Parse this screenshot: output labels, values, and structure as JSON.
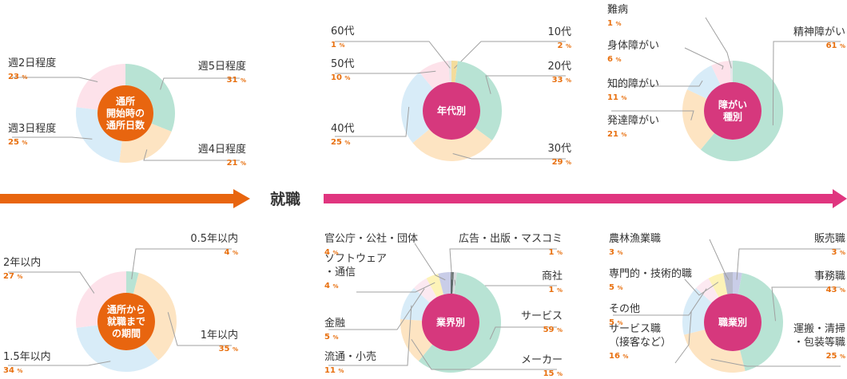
{
  "divider_label": "就職",
  "colors": {
    "orange_arrow": "#e8650f",
    "pink_arrow": "#e0357f",
    "percent_text": "#e8700f",
    "center_orange": "#e8650f",
    "center_pink": "#d6387d"
  },
  "chart_data": [
    {
      "id": "days",
      "type": "pie",
      "center_label": [
        "通所",
        "開始時の",
        "通所日数"
      ],
      "categories": [
        "週5日程度",
        "週4日程度",
        "週3日程度",
        "週2日程度"
      ],
      "values": [
        31,
        21,
        25,
        23
      ],
      "unit": "%"
    },
    {
      "id": "age",
      "type": "pie",
      "center_label": [
        "年代別"
      ],
      "categories": [
        "10代",
        "20代",
        "30代",
        "40代",
        "50代",
        "60代"
      ],
      "values": [
        2,
        33,
        29,
        25,
        10,
        1
      ],
      "unit": "%"
    },
    {
      "id": "disability",
      "type": "pie",
      "center_label": [
        "障がい",
        "種別"
      ],
      "categories": [
        "精神障がい",
        "発達障がい",
        "知的障がい",
        "身体障がい",
        "難病"
      ],
      "values": [
        61,
        21,
        11,
        6,
        1
      ],
      "unit": "%"
    },
    {
      "id": "period",
      "type": "pie",
      "center_label": [
        "通所から",
        "就職まで",
        "の期間"
      ],
      "categories": [
        "0.5年以内",
        "1年以内",
        "1.5年以内",
        "2年以内"
      ],
      "values": [
        4,
        35,
        34,
        27
      ],
      "unit": "%"
    },
    {
      "id": "industry",
      "type": "pie",
      "center_label": [
        "業界別"
      ],
      "categories": [
        "広告・出版・マスコミ",
        "商社",
        "サービス",
        "メーカー",
        "流通・小売",
        "金融",
        "ソフトウェア・通信",
        "官公庁・公社・団体"
      ],
      "values": [
        1,
        1,
        59,
        15,
        11,
        5,
        4,
        4
      ],
      "unit": "%"
    },
    {
      "id": "job",
      "type": "pie",
      "center_label": [
        "職業別"
      ],
      "categories": [
        "販売職",
        "事務職",
        "運搬・清掃・包装等職",
        "サービス職（接客など）",
        "その他",
        "専門的・技術的職",
        "農林漁業職"
      ],
      "values": [
        3,
        43,
        25,
        16,
        5,
        5,
        3
      ],
      "unit": "%"
    }
  ]
}
